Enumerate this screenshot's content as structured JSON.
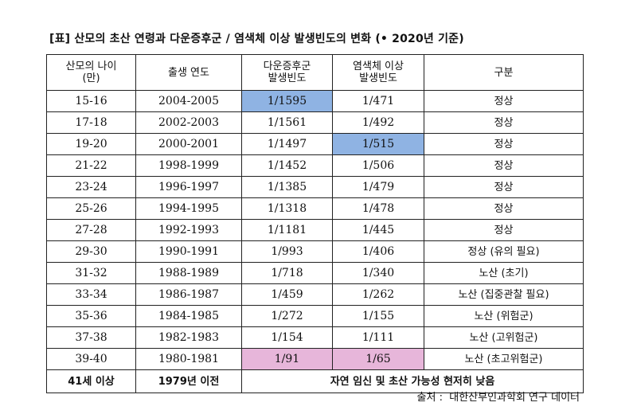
{
  "title": "[표] 산모의 초산 연령과 다운증후군 / 염색체 이상 발생빈도의 변화 (• 2020년 기준)",
  "headers": {
    "age": [
      "산모의 나이",
      "(만)"
    ],
    "birth_year": "출생 연도",
    "down": [
      "다운증후군",
      "발생빈도"
    ],
    "chromosome": [
      "염색체 이상",
      "발생빈도"
    ],
    "category": "구분"
  },
  "rows": [
    {
      "age": "15-16",
      "year": "2004-2005",
      "down": "1/1595",
      "chrom": "1/471",
      "category": "정상",
      "hl_down": "blue",
      "hl_chrom": ""
    },
    {
      "age": "17-18",
      "year": "2002-2003",
      "down": "1/1561",
      "chrom": "1/492",
      "category": "정상",
      "hl_down": "",
      "hl_chrom": ""
    },
    {
      "age": "19-20",
      "year": "2000-2001",
      "down": "1/1497",
      "chrom": "1/515",
      "category": "정상",
      "hl_down": "",
      "hl_chrom": "blue"
    },
    {
      "age": "21-22",
      "year": "1998-1999",
      "down": "1/1452",
      "chrom": "1/506",
      "category": "정상",
      "hl_down": "",
      "hl_chrom": ""
    },
    {
      "age": "23-24",
      "year": "1996-1997",
      "down": "1/1385",
      "chrom": "1/479",
      "category": "정상",
      "hl_down": "",
      "hl_chrom": ""
    },
    {
      "age": "25-26",
      "year": "1994-1995",
      "down": "1/1318",
      "chrom": "1/478",
      "category": "정상",
      "hl_down": "",
      "hl_chrom": ""
    },
    {
      "age": "27-28",
      "year": "1992-1993",
      "down": "1/1181",
      "chrom": "1/445",
      "category": "정상",
      "hl_down": "",
      "hl_chrom": ""
    },
    {
      "age": "29-30",
      "year": "1990-1991",
      "down": "1/993",
      "chrom": "1/406",
      "category": "정상 (유의 필요)",
      "hl_down": "",
      "hl_chrom": ""
    },
    {
      "age": "31-32",
      "year": "1988-1989",
      "down": "1/718",
      "chrom": "1/340",
      "category": "노산 (초기)",
      "hl_down": "",
      "hl_chrom": ""
    },
    {
      "age": "33-34",
      "year": "1986-1987",
      "down": "1/459",
      "chrom": "1/262",
      "category": "노산 (집중관찰 필요)",
      "hl_down": "",
      "hl_chrom": ""
    },
    {
      "age": "35-36",
      "year": "1984-1985",
      "down": "1/272",
      "chrom": "1/155",
      "category": "노산 (위험군)",
      "hl_down": "",
      "hl_chrom": ""
    },
    {
      "age": "37-38",
      "year": "1982-1983",
      "down": "1/154",
      "chrom": "1/111",
      "category": "노산 (고위험군)",
      "hl_down": "",
      "hl_chrom": ""
    },
    {
      "age": "39-40",
      "year": "1980-1981",
      "down": "1/91",
      "chrom": "1/65",
      "category": "노산 (초고위험군)",
      "hl_down": "pink",
      "hl_chrom": "pink"
    }
  ],
  "last_row": {
    "age": "41세 이상",
    "year": "1979년 이전",
    "note": "자연 임신 및 초산 가능성 현저히 낮음"
  },
  "source": "출처 :  대한산부인과학회 연구 데이터",
  "colors": {
    "blue": "#8fb3e3",
    "pink": "#e7b6da"
  }
}
